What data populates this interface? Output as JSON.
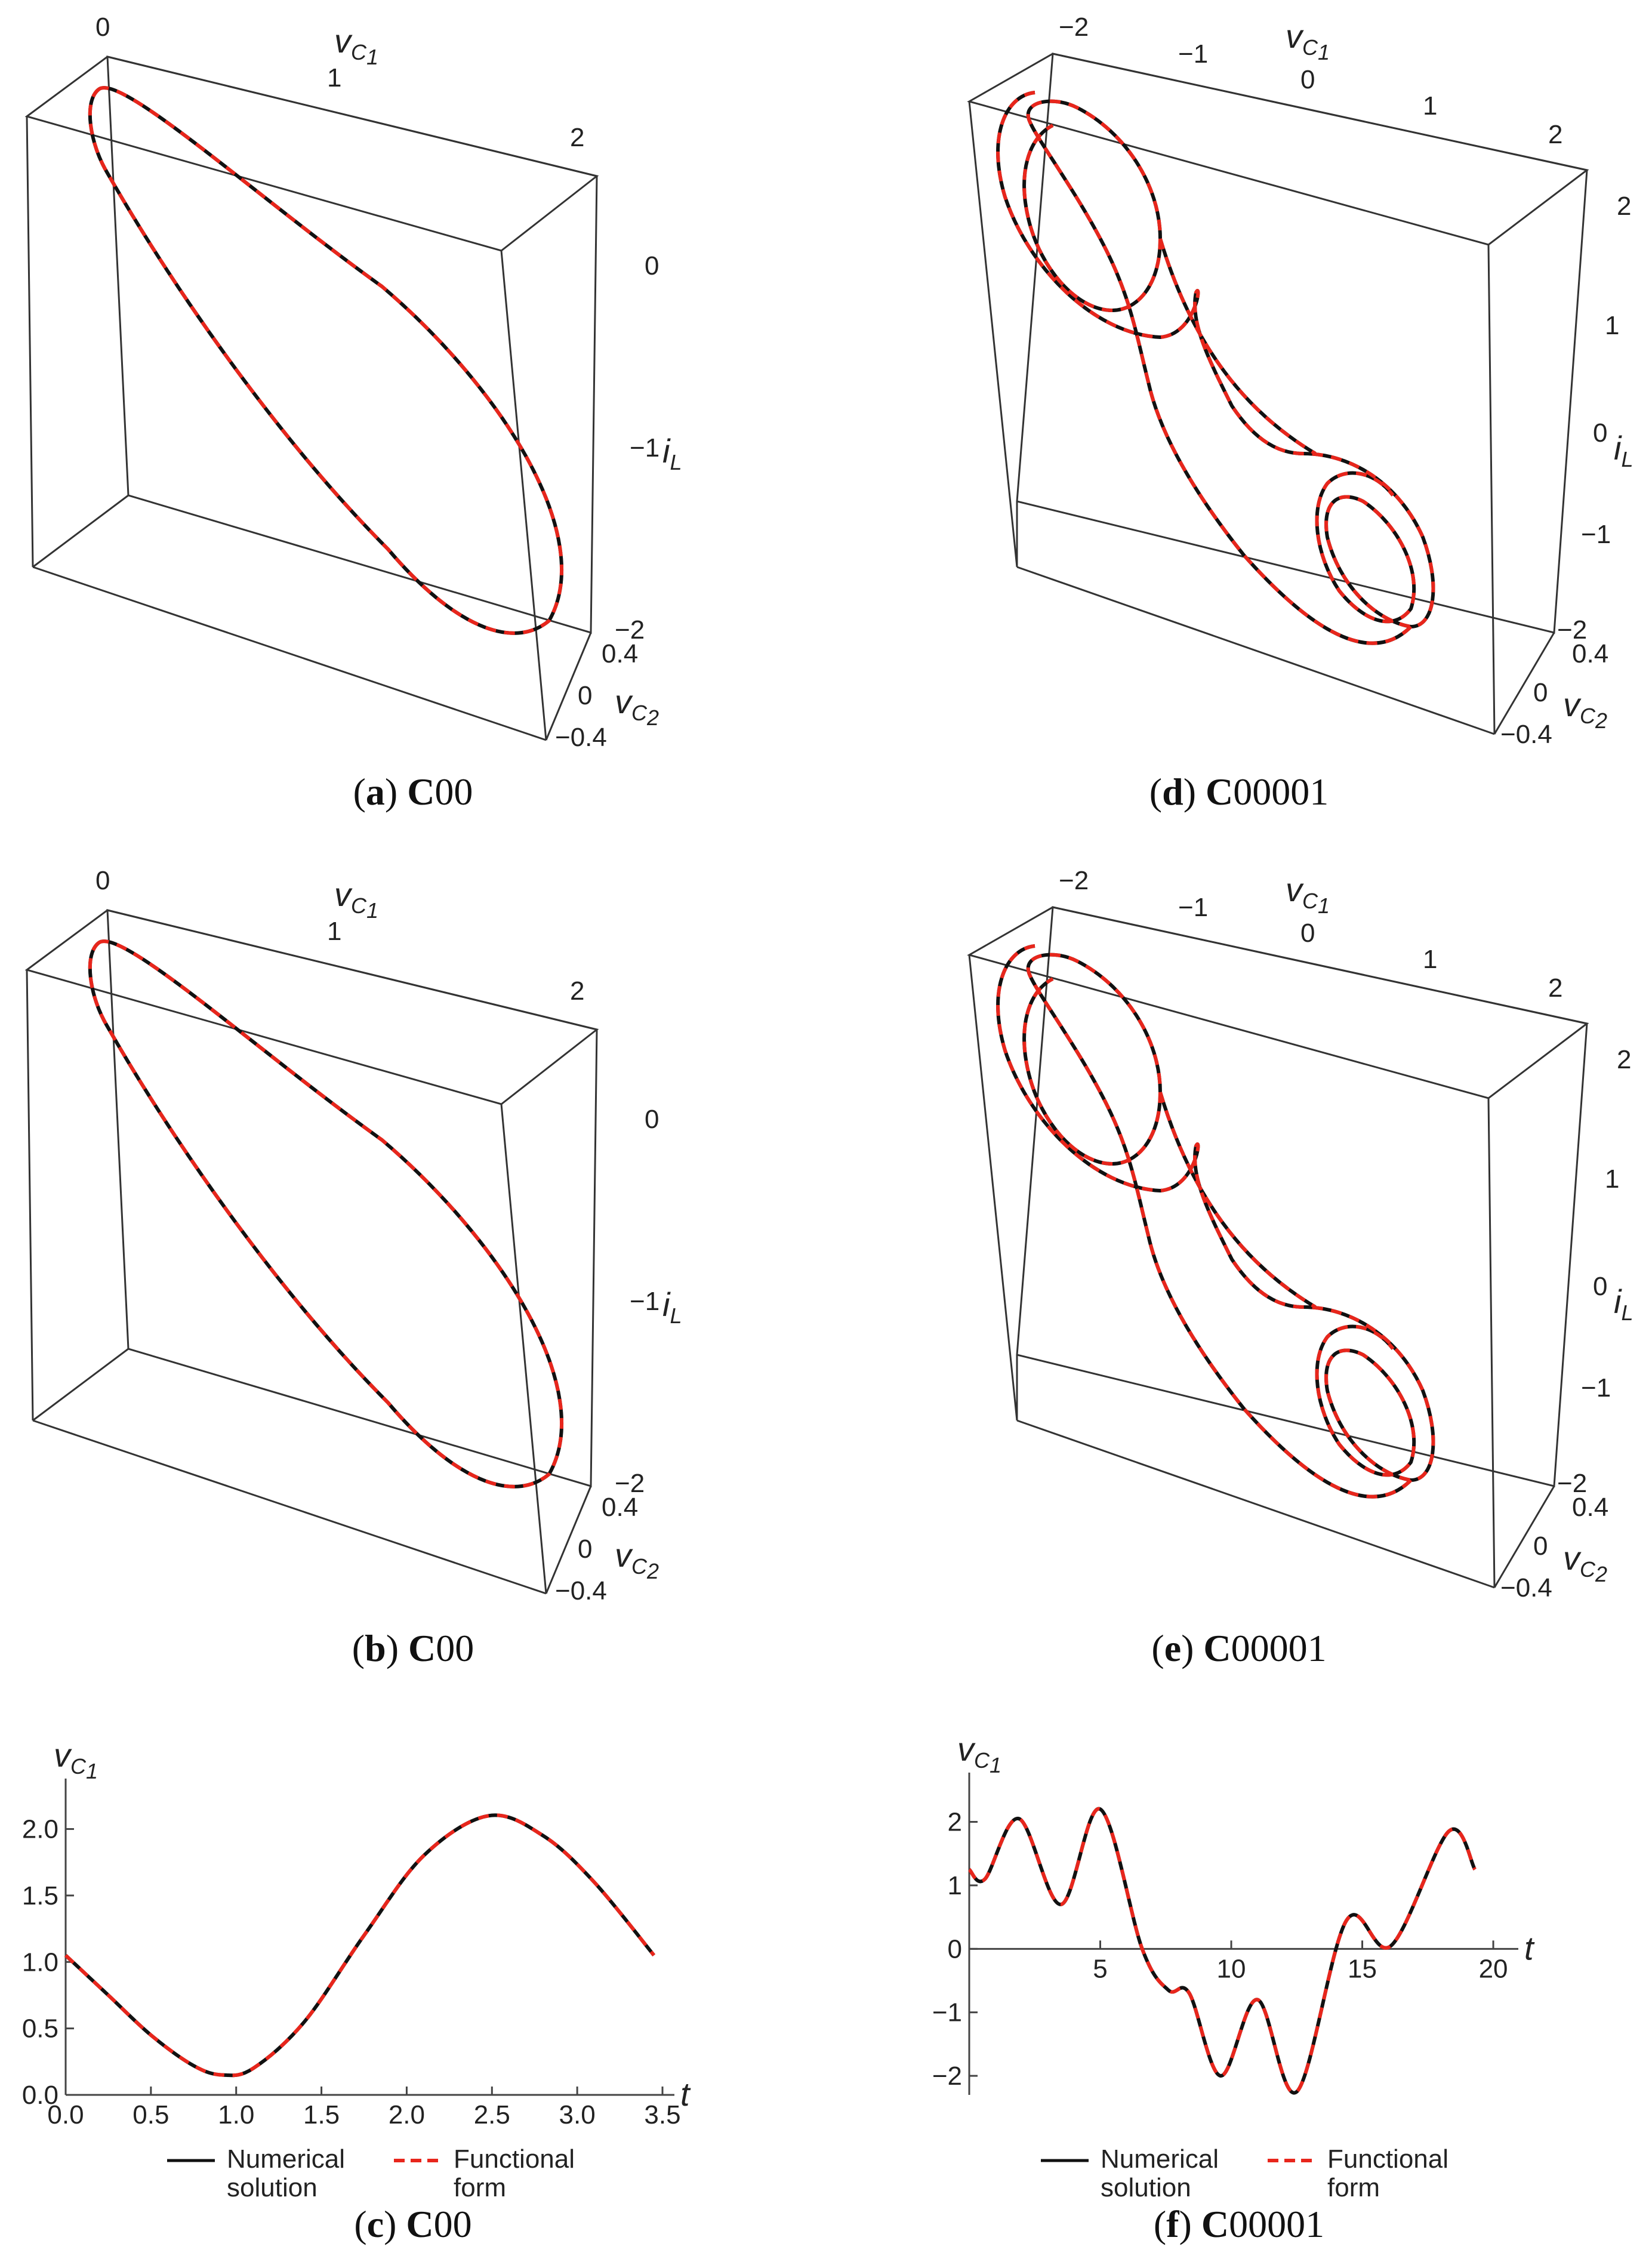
{
  "captions": [
    {
      "id": "a",
      "letter": "a",
      "model": "C",
      "suffix": "00"
    },
    {
      "id": "b",
      "letter": "b",
      "model": "C",
      "suffix": "00"
    },
    {
      "id": "c",
      "letter": "c",
      "model": "C",
      "suffix": "00"
    },
    {
      "id": "d",
      "letter": "d",
      "model": "C",
      "suffix": "00001"
    },
    {
      "id": "e",
      "letter": "e",
      "model": "C",
      "suffix": "00001"
    },
    {
      "id": "f",
      "letter": "f",
      "model": "C",
      "suffix": "00001"
    }
  ],
  "axis_text": {
    "v": "v",
    "C1": "C",
    "C1_sub": "1",
    "C2_sub": "2",
    "i": "i",
    "L": "L",
    "t": "t"
  },
  "chart_data": [
    {
      "panel": "a",
      "type": "line",
      "projection": "3d",
      "axes": {
        "x": "vC1",
        "y": "iL",
        "z": "vC2"
      },
      "x_ticks": [
        "0",
        "1",
        "2"
      ],
      "y_ticks": [
        "0",
        "−1",
        "−2"
      ],
      "z_ticks": [
        "0.4",
        "0",
        "−0.4"
      ],
      "series": [
        {
          "name": "Numerical solution",
          "color": "#111111"
        },
        {
          "name": "Functional form",
          "color": "#e8261c"
        }
      ]
    },
    {
      "panel": "b",
      "type": "line",
      "projection": "3d",
      "axes": {
        "x": "vC1",
        "y": "iL",
        "z": "vC2"
      },
      "x_ticks": [
        "0",
        "1",
        "2"
      ],
      "y_ticks": [
        "0",
        "−1",
        "−2"
      ],
      "z_ticks": [
        "0.4",
        "0",
        "−0.4"
      ],
      "series": [
        {
          "name": "Numerical solution",
          "color": "#111111"
        },
        {
          "name": "Functional form",
          "color": "#e8261c"
        }
      ]
    },
    {
      "panel": "c",
      "type": "line",
      "x": [
        0,
        0.25,
        0.5,
        0.75,
        0.92,
        1.1,
        1.4,
        1.75,
        2.1,
        2.48,
        2.8,
        3.1,
        3.45
      ],
      "series": [
        {
          "name": "Numerical solution",
          "color": "#111111",
          "values": [
            1.05,
            0.75,
            0.45,
            0.22,
            0.15,
            0.2,
            0.55,
            1.2,
            1.8,
            2.1,
            1.95,
            1.6,
            1.05
          ]
        },
        {
          "name": "Functional form",
          "color": "#e8261c",
          "values": [
            1.05,
            0.75,
            0.45,
            0.22,
            0.15,
            0.2,
            0.55,
            1.2,
            1.8,
            2.1,
            1.95,
            1.6,
            1.05
          ]
        }
      ],
      "xlim": [
        0,
        3.5
      ],
      "ylim": [
        0,
        2.2
      ],
      "x_ticks": [
        "0.0",
        "0.5",
        "1.0",
        "1.5",
        "2.0",
        "2.5",
        "3.0",
        "3.5"
      ],
      "y_ticks": [
        "0.0",
        "0.5",
        "1.0",
        "1.5",
        "2.0"
      ],
      "legend": {
        "placement": "bottom",
        "items": [
          [
            "Numerical",
            "solution"
          ],
          [
            "Functional",
            "form"
          ]
        ]
      }
    },
    {
      "panel": "d",
      "type": "line",
      "projection": "3d",
      "axes": {
        "x": "vC1",
        "y": "iL",
        "z": "vC2"
      },
      "x_ticks": [
        "−2",
        "−1",
        "0",
        "1",
        "2"
      ],
      "y_ticks": [
        "2",
        "1",
        "0",
        "−1",
        "−2"
      ],
      "z_ticks": [
        "0.4",
        "0",
        "−0.4"
      ],
      "series": [
        {
          "name": "Numerical solution",
          "color": "#111111"
        },
        {
          "name": "Functional form",
          "color": "#e8261c"
        }
      ]
    },
    {
      "panel": "e",
      "type": "line",
      "projection": "3d",
      "axes": {
        "x": "vC1",
        "y": "iL",
        "z": "vC2"
      },
      "x_ticks": [
        "−2",
        "−1",
        "0",
        "1",
        "2"
      ],
      "y_ticks": [
        "2",
        "1",
        "0",
        "−1",
        "−2"
      ],
      "z_ticks": [
        "0.4",
        "0",
        "−0.4"
      ],
      "series": [
        {
          "name": "Numerical solution",
          "color": "#111111"
        },
        {
          "name": "Functional form",
          "color": "#e8261c"
        }
      ]
    },
    {
      "panel": "f",
      "type": "line",
      "x": [
        0,
        0.6,
        1.9,
        3.5,
        5.0,
        6.6,
        7.6,
        8.4,
        9.6,
        11.0,
        12.5,
        14.4,
        16.1,
        18.3,
        19.3
      ],
      "series": [
        {
          "name": "Numerical solution",
          "color": "#111111",
          "values": [
            1.25,
            1.1,
            2.05,
            0.7,
            2.2,
            0.0,
            -0.65,
            -0.7,
            -2.0,
            -0.8,
            -2.25,
            0.45,
            0.05,
            1.85,
            1.25
          ]
        },
        {
          "name": "Functional form",
          "color": "#e8261c",
          "values": [
            1.25,
            1.1,
            2.05,
            0.7,
            2.2,
            0.0,
            -0.65,
            -0.7,
            -2.0,
            -0.8,
            -2.25,
            0.45,
            0.05,
            1.85,
            1.25
          ]
        }
      ],
      "xlim": [
        0,
        20.5
      ],
      "ylim": [
        -2.3,
        2.4
      ],
      "x_ticks": [
        "5",
        "10",
        "15",
        "20"
      ],
      "y_ticks": [
        "2",
        "1",
        "0",
        "−1",
        "−2"
      ],
      "legend": {
        "placement": "bottom",
        "items": [
          [
            "Numerical",
            "solution"
          ],
          [
            "Functional",
            "form"
          ]
        ]
      }
    }
  ]
}
